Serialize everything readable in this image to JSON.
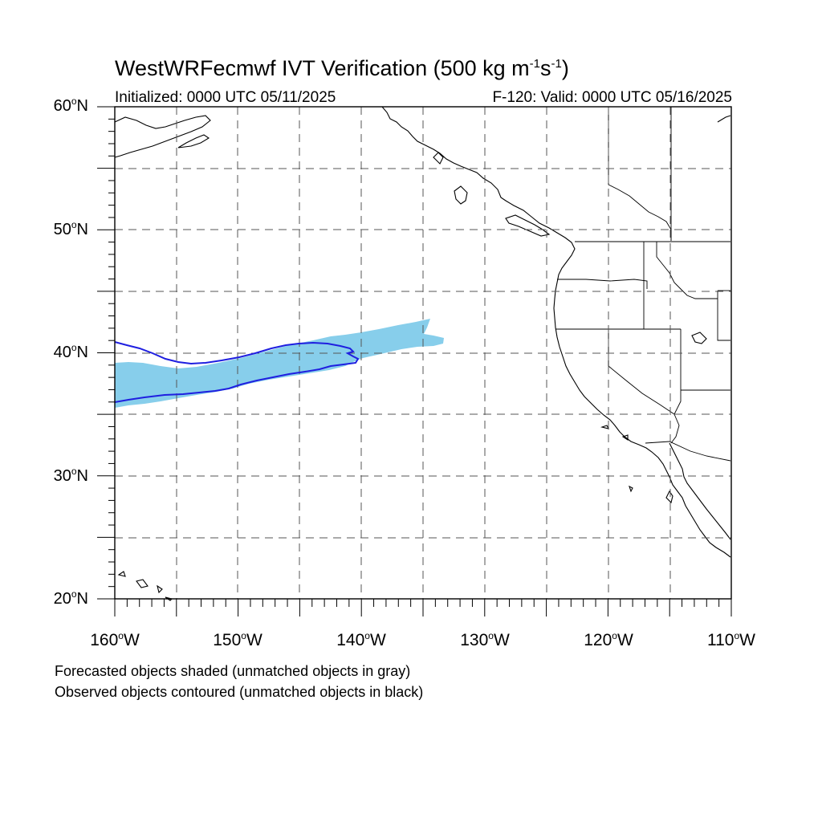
{
  "title": {
    "text": "WestWRFecmwf IVT Verification (500 kg m",
    "exp1": "-1",
    "mid": "s",
    "exp2": "-1",
    "end": ")"
  },
  "subtitle_left": "Initialized: 0000 UTC 05/11/2025",
  "subtitle_right": "F-120: Valid: 0000 UTC 05/16/2025",
  "map": {
    "lon_range": [
      -160,
      -110
    ],
    "lat_range": [
      20,
      60
    ],
    "gridlines": "dashed",
    "lat_labels": [
      {
        "deg": "60",
        "hem": "N"
      },
      {
        "deg": "50",
        "hem": "N"
      },
      {
        "deg": "40",
        "hem": "N"
      },
      {
        "deg": "30",
        "hem": "N"
      },
      {
        "deg": "20",
        "hem": "N"
      }
    ],
    "lon_labels": [
      {
        "deg": "160",
        "hem": "W"
      },
      {
        "deg": "150",
        "hem": "W"
      },
      {
        "deg": "140",
        "hem": "W"
      },
      {
        "deg": "130",
        "hem": "W"
      },
      {
        "deg": "120",
        "hem": "W"
      },
      {
        "deg": "110",
        "hem": "W"
      }
    ],
    "forecast_fill_color": "#87ceeb",
    "observed_contour_color": "#1f1fe0",
    "coastline_color": "#000000"
  },
  "captions": {
    "line1": "Forecasted objects shaded (unmatched objects in gray)",
    "line2": "Observed objects contoured (unmatched objects in black)"
  }
}
